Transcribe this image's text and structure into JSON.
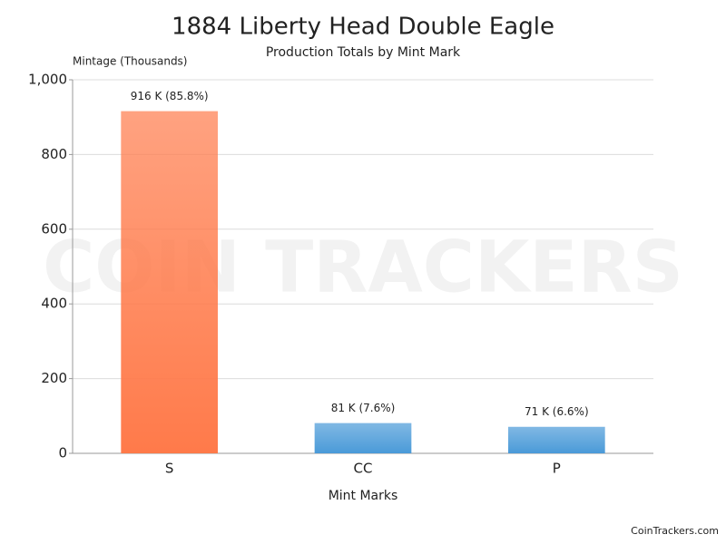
{
  "chart_data": {
    "type": "bar",
    "title": "1884 Liberty Head Double Eagle",
    "subtitle": "Production Totals by Mint Mark",
    "y_label": "Mintage (Thousands)",
    "x_label": "Mint Marks",
    "credit": "CoinTrackers.com",
    "watermark": "COIN TRACKERS",
    "categories": [
      "S",
      "CC",
      "P"
    ],
    "values": [
      916,
      81,
      71
    ],
    "value_labels": [
      "916 K (85.8%)",
      "81 K (7.6%)",
      "71 K (6.6%)"
    ],
    "colors": [
      "#ff7a4a",
      "#4a9ad8",
      "#4a9ad8"
    ],
    "ylim": [
      0,
      1000
    ],
    "yticks": [
      0,
      200,
      400,
      600,
      800,
      {
        "value": 1000,
        "label": "1,000"
      }
    ],
    "grid": true
  }
}
